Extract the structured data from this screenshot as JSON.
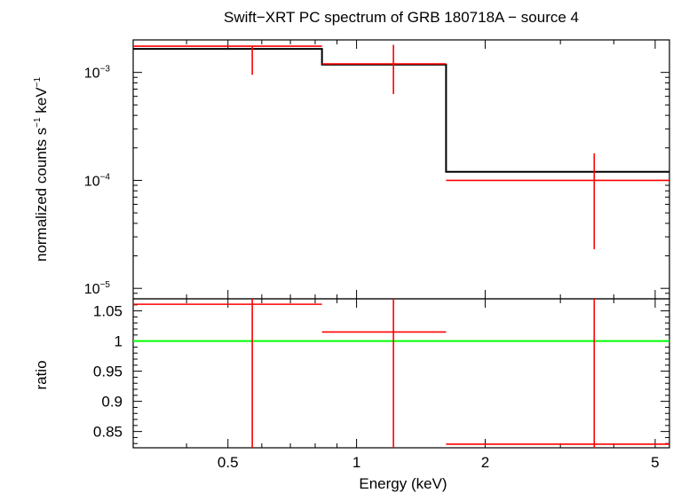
{
  "chart_data": [
    {
      "type": "scatter",
      "title": "Swift−XRT PC spectrum of GRB 180718A − source 4",
      "ylabel": {
        "text": "normalized counts s",
        "sup1": "−1",
        "mid": " keV",
        "sup2": "−1"
      },
      "y_scale": "log",
      "ylim": [
        8e-06,
        0.002
      ],
      "yticks": [
        {
          "base": "10",
          "exp": "−3",
          "value": 0.001
        },
        {
          "base": "10",
          "exp": "−4",
          "value": 0.0001
        },
        {
          "base": "10",
          "exp": "−5",
          "value": 1e-05
        }
      ],
      "x_scale": "log",
      "xlim": [
        0.3,
        5.4
      ],
      "series": [
        {
          "role": "data",
          "color": "#ff0000",
          "points": [
            {
              "x_lo": 0.3,
              "x_hi": 0.83,
              "x": 0.57,
              "y": 0.00175,
              "y_lo": 0.00095,
              "y_hi": 0.00175
            },
            {
              "x_lo": 0.83,
              "x_hi": 1.62,
              "x": 1.22,
              "y": 0.0012,
              "y_lo": 0.00063,
              "y_hi": 0.0018
            },
            {
              "x_lo": 1.62,
              "x_hi": 5.4,
              "x": 3.6,
              "y": 0.0001,
              "y_lo": 2.3e-05,
              "y_hi": 0.000178
            }
          ]
        },
        {
          "role": "model",
          "color": "#000000",
          "steps": [
            {
              "x_lo": 0.3,
              "x_hi": 0.83,
              "y": 0.00165
            },
            {
              "x_lo": 0.83,
              "x_hi": 1.62,
              "y": 0.00118
            },
            {
              "x_lo": 1.62,
              "x_hi": 5.4,
              "y": 0.00012
            }
          ]
        }
      ]
    },
    {
      "type": "scatter",
      "xlabel": "Energy (keV)",
      "ylabel": "ratio",
      "x_scale": "log",
      "xlim": [
        0.3,
        5.4
      ],
      "ylim": [
        0.823,
        1.07
      ],
      "xticks": [
        {
          "label": "0.5",
          "value": 0.5
        },
        {
          "label": "1",
          "value": 1
        },
        {
          "label": "2",
          "value": 2
        },
        {
          "label": "5",
          "value": 5
        }
      ],
      "yticks": [
        {
          "label": "1.05",
          "value": 1.05
        },
        {
          "label": "1",
          "value": 1.0
        },
        {
          "label": "0.95",
          "value": 0.95
        },
        {
          "label": "0.9",
          "value": 0.9
        },
        {
          "label": "0.85",
          "value": 0.85
        }
      ],
      "reference_line": {
        "y": 1.0,
        "color": "#00ff00"
      },
      "series": [
        {
          "role": "ratio",
          "color": "#ff0000",
          "points": [
            {
              "x_lo": 0.3,
              "x_hi": 0.83,
              "x": 0.57,
              "y": 1.061
            },
            {
              "x_lo": 0.83,
              "x_hi": 1.62,
              "x": 1.22,
              "y": 1.015
            },
            {
              "x_lo": 1.62,
              "x_hi": 5.4,
              "x": 3.6,
              "y": 0.829
            }
          ]
        }
      ]
    }
  ]
}
